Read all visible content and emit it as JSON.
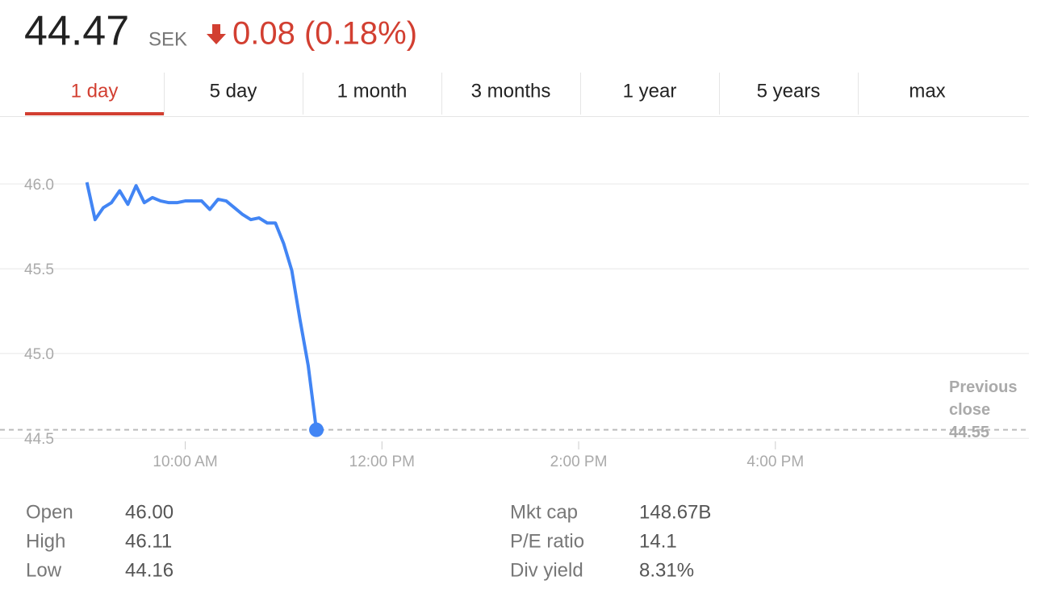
{
  "header": {
    "price": "44.47",
    "currency": "SEK",
    "change": "0.08 (0.18%)"
  },
  "tabs": [
    "1 day",
    "5 day",
    "1 month",
    "3 months",
    "1 year",
    "5 years",
    "max"
  ],
  "chart_data": {
    "type": "line",
    "x": [
      540,
      545,
      550,
      555,
      560,
      565,
      570,
      575,
      580,
      585,
      590,
      595,
      600,
      605,
      610,
      615,
      620,
      625,
      630,
      635,
      640,
      645,
      650,
      655,
      660,
      665,
      670,
      675,
      680
    ],
    "series": [
      {
        "color": "#4285f4",
        "values": [
          46.01,
          45.79,
          45.86,
          45.89,
          45.96,
          45.88,
          45.99,
          45.89,
          45.92,
          45.9,
          45.89,
          45.89,
          45.9,
          45.9,
          45.9,
          45.85,
          45.91,
          45.9,
          45.86,
          45.82,
          45.79,
          45.8,
          45.77,
          45.77,
          45.65,
          45.49,
          45.2,
          44.93,
          44.55
        ]
      }
    ],
    "xlim": [
      487,
      1062
    ],
    "xticks": [
      {
        "value": 600,
        "label": "10:00 AM"
      },
      {
        "value": 720,
        "label": "12:00 PM"
      },
      {
        "value": 840,
        "label": "2:00 PM"
      },
      {
        "value": 960,
        "label": "4:00 PM"
      }
    ],
    "ylim": [
      44.42,
      46.4
    ],
    "yticks": [
      {
        "value": 46,
        "label": "46.0"
      },
      45.5,
      {
        "value": 45,
        "label": "45.0"
      },
      44.5
    ],
    "grid": true,
    "previous_close": {
      "label": "Previous close",
      "value": 44.55
    }
  },
  "stats": {
    "left": [
      [
        "Open",
        "46.00"
      ],
      [
        "High",
        "46.11"
      ],
      [
        "Low",
        "44.16"
      ]
    ],
    "right": [
      [
        "Mkt cap",
        "148.67B"
      ],
      [
        "P/E ratio",
        "14.1"
      ],
      [
        "Div yield",
        "8.31%"
      ]
    ]
  }
}
